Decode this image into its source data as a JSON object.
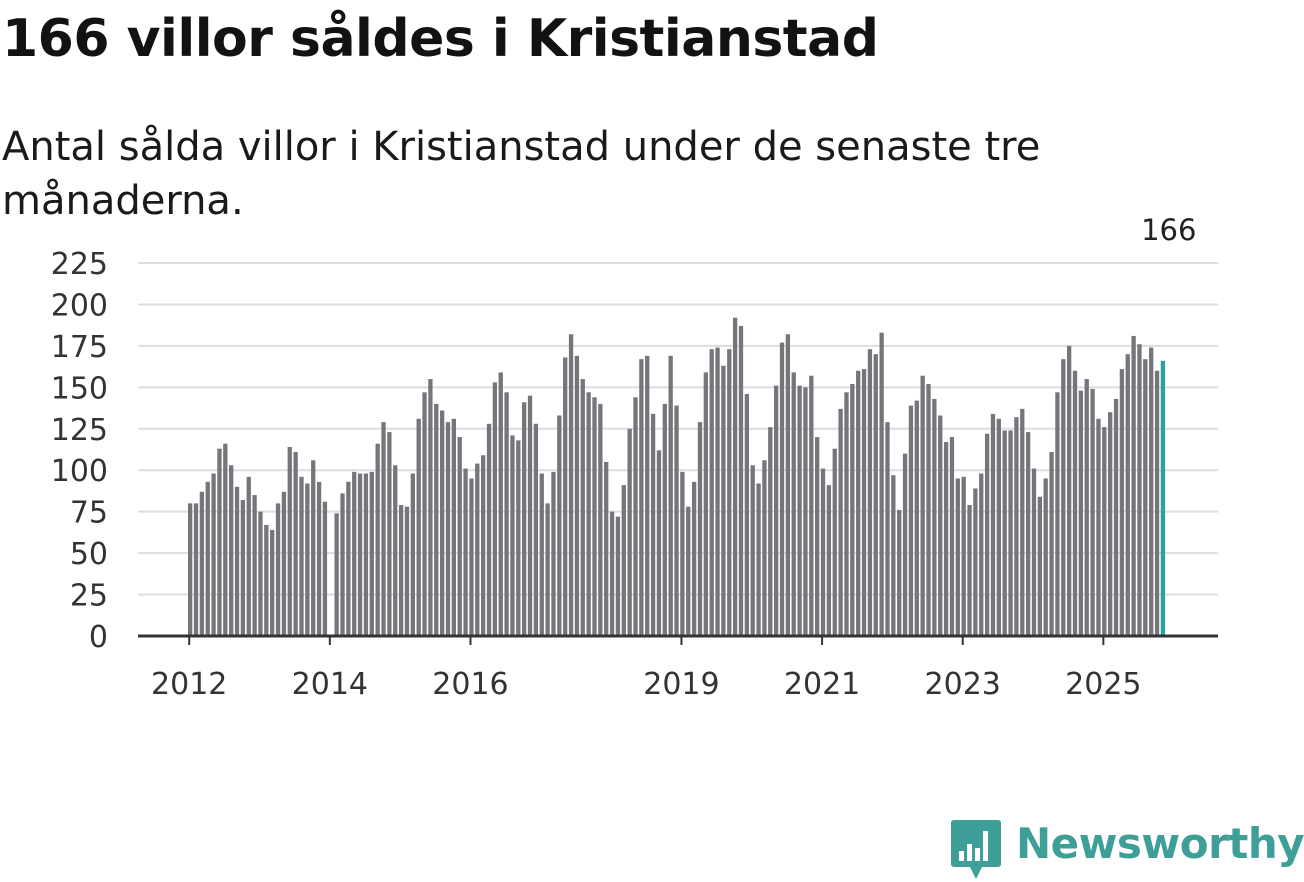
{
  "title": "166 villor såldes i Kristianstad",
  "subtitle": "Antal sålda villor i Kristianstad under de senaste tre månaderna.",
  "brand": {
    "name": "Newsworthy",
    "icon": "newsworthy-logo-icon"
  },
  "colors": {
    "bar": "#76757b",
    "highlight": "#2aa39a",
    "grid": "#dddddd",
    "axis": "#333333",
    "brand": "#3e9e98"
  },
  "chart_data": {
    "type": "bar",
    "title": "166 villor såldes i Kristianstad",
    "xlabel": "",
    "ylabel": "",
    "ylim": [
      0,
      225
    ],
    "yticks": [
      0,
      25,
      50,
      75,
      100,
      125,
      150,
      175,
      200,
      225
    ],
    "grid": true,
    "x_start": {
      "year": 2012,
      "month": 1
    },
    "xticks": [
      {
        "label": "2012",
        "index": 0
      },
      {
        "label": "2014",
        "index": 24
      },
      {
        "label": "2016",
        "index": 48
      },
      {
        "label": "2019",
        "index": 84
      },
      {
        "label": "2021",
        "index": 108
      },
      {
        "label": "2023",
        "index": 132
      },
      {
        "label": "2025",
        "index": 156
      }
    ],
    "annotation": {
      "label": "166",
      "index": 167
    },
    "values": [
      80,
      80,
      87,
      93,
      98,
      113,
      116,
      103,
      90,
      82,
      96,
      85,
      75,
      67,
      64,
      80,
      87,
      114,
      111,
      96,
      92,
      106,
      93,
      81,
      null,
      74,
      86,
      93,
      99,
      98,
      98,
      99,
      116,
      129,
      123,
      103,
      79,
      78,
      98,
      131,
      147,
      155,
      140,
      136,
      129,
      131,
      120,
      101,
      95,
      104,
      109,
      128,
      153,
      159,
      147,
      121,
      118,
      141,
      145,
      128,
      98,
      80,
      99,
      133,
      168,
      182,
      169,
      155,
      147,
      144,
      140,
      105,
      75,
      72,
      91,
      125,
      144,
      167,
      169,
      134,
      112,
      140,
      169,
      139,
      99,
      78,
      93,
      129,
      159,
      173,
      174,
      163,
      173,
      192,
      187,
      146,
      103,
      92,
      106,
      126,
      151,
      177,
      182,
      159,
      151,
      150,
      157,
      120,
      101,
      91,
      113,
      137,
      147,
      152,
      160,
      161,
      173,
      170,
      183,
      129,
      97,
      76,
      110,
      139,
      142,
      157,
      152,
      143,
      133,
      117,
      120,
      95,
      96,
      79,
      89,
      98,
      122,
      134,
      131,
      124,
      124,
      132,
      137,
      123,
      101,
      84,
      95,
      111,
      147,
      167,
      175,
      160,
      148,
      155,
      149,
      131,
      126,
      135,
      143,
      161,
      170,
      181,
      176,
      167,
      174,
      160,
      166
    ]
  }
}
